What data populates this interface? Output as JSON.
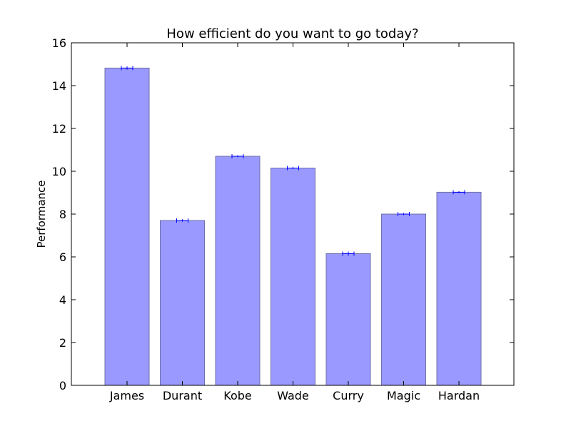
{
  "chart_data": {
    "type": "bar",
    "title": "How efficient do you want to go today?",
    "xlabel": "",
    "ylabel": "Performance",
    "categories": [
      "James",
      "Durant",
      "Kobe",
      "Wade",
      "Curry",
      "Magic",
      "Hardan"
    ],
    "values": [
      14.82,
      7.7,
      10.7,
      10.15,
      6.15,
      8.0,
      9.02
    ],
    "errors": [
      0.08,
      0.06,
      0.05,
      0.06,
      0.1,
      0.05,
      0.05
    ],
    "ylim": [
      0,
      16
    ],
    "yticks": [
      0,
      2,
      4,
      6,
      8,
      10,
      12,
      14,
      16
    ],
    "grid": false,
    "colors": {
      "bar_fill": "#9999ff",
      "bar_edge": "#6f6fa8",
      "error_bar": "#0000ff",
      "axis": "#000000",
      "background": "#ffffff"
    }
  }
}
